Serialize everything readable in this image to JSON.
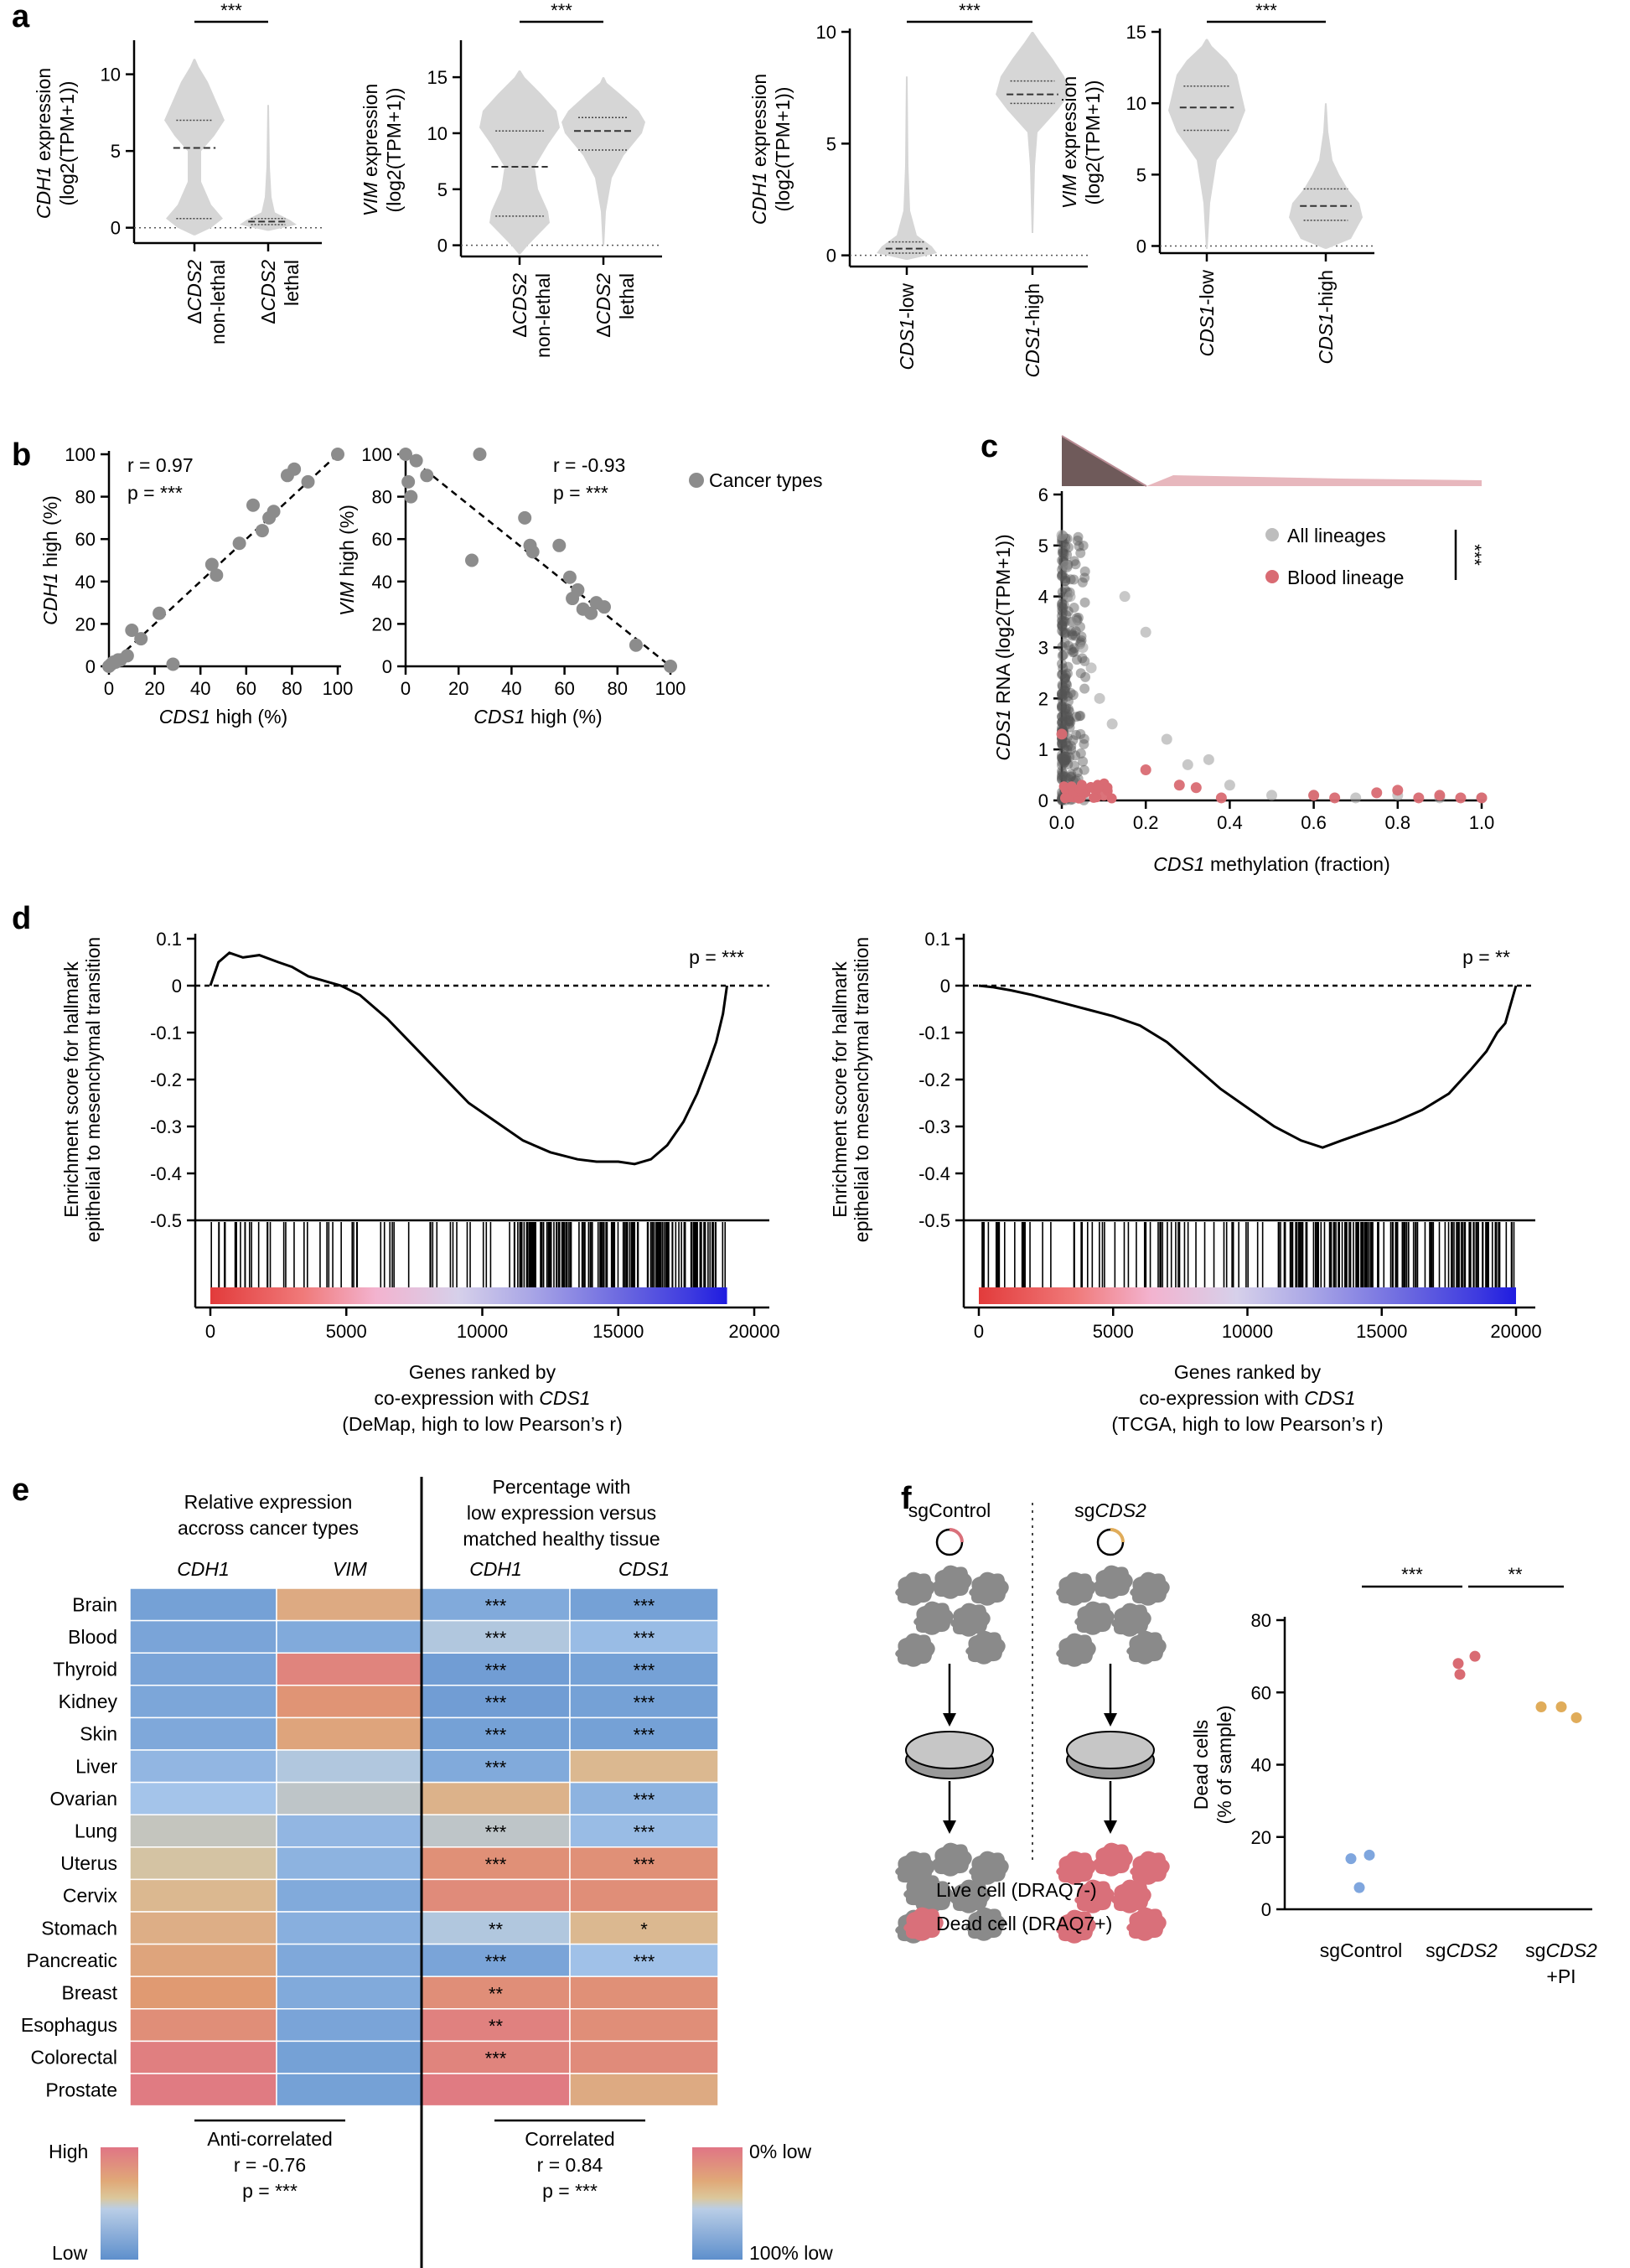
{
  "panel_labels": {
    "a": "a",
    "b": "b",
    "c": "c",
    "d": "d",
    "e": "e",
    "f": "f"
  },
  "sig": {
    "three": "***",
    "two": "**",
    "one": "*"
  },
  "common": {
    "log_unit": "(log2(TPM+1))",
    "expression": " expression",
    "delta": "Δ",
    "non_lethal": "non-lethal",
    "lethal": "lethal",
    "low": "-low",
    "high": "-high",
    "high_pct": " high (%)"
  },
  "genes": {
    "cdh1": "CDH1",
    "vim": "VIM",
    "cds1": "CDS1",
    "cds2": "CDS2"
  },
  "chart_data": [
    {
      "id": "a1",
      "type": "violin",
      "panel": "a",
      "ylabel_gene": "CDH1",
      "ylabel": "CDH1 expression (log2(TPM+1))",
      "ylim": [
        -1,
        12
      ],
      "yticks": [
        0,
        5,
        10
      ],
      "categories": [
        "ΔCDS2 non-lethal",
        "ΔCDS2 lethal"
      ],
      "medians": [
        5.2,
        0.4
      ],
      "quartiles": [
        [
          0.6,
          7.0
        ],
        [
          0.2,
          0.6
        ]
      ],
      "significance": "***"
    },
    {
      "id": "a2",
      "type": "violin",
      "panel": "a",
      "ylabel_gene": "VIM",
      "ylabel": "VIM expression (log2(TPM+1))",
      "ylim": [
        -1,
        18
      ],
      "yticks": [
        0,
        5,
        10,
        15
      ],
      "categories": [
        "ΔCDS2 non-lethal",
        "ΔCDS2 lethal"
      ],
      "medians": [
        7.0,
        10.2
      ],
      "quartiles": [
        [
          2.6,
          10.2
        ],
        [
          8.5,
          11.4
        ]
      ],
      "significance": "***"
    },
    {
      "id": "a3",
      "type": "violin",
      "panel": "a",
      "ylabel_gene": "CDH1",
      "ylabel": "CDH1 expression (log2(TPM+1))",
      "ylim": [
        -0.5,
        10
      ],
      "yticks": [
        0,
        5,
        10
      ],
      "categories": [
        "CDS1-low",
        "CDS1-high"
      ],
      "medians": [
        0.3,
        7.2
      ],
      "quartiles": [
        [
          0.1,
          0.6
        ],
        [
          6.8,
          7.8
        ]
      ],
      "significance": "***"
    },
    {
      "id": "a4",
      "type": "violin",
      "panel": "a",
      "ylabel_gene": "VIM",
      "ylabel": "VIM expression (log2(TPM+1))",
      "ylim": [
        -0.5,
        15
      ],
      "yticks": [
        0,
        5,
        10,
        15
      ],
      "categories": [
        "CDS1-low",
        "CDS1-high"
      ],
      "medians": [
        9.7,
        2.8
      ],
      "quartiles": [
        [
          8.1,
          11.2
        ],
        [
          1.8,
          4.0
        ]
      ],
      "significance": "***"
    },
    {
      "id": "b1",
      "type": "scatter",
      "panel": "b",
      "xlabel": "CDS1 high (%)",
      "ylabel": "CDH1 high (%)",
      "xlim": [
        0,
        100
      ],
      "ylim": [
        0,
        100
      ],
      "xticks": [
        0,
        20,
        40,
        60,
        80,
        100
      ],
      "yticks": [
        0,
        20,
        40,
        60,
        80,
        100
      ],
      "annotation_r": "r = 0.97",
      "annotation_p": "p = ***",
      "x": [
        0,
        1,
        2,
        3,
        4,
        5,
        8,
        10,
        14,
        22,
        28,
        45,
        47,
        57,
        63,
        67,
        70,
        72,
        78,
        81,
        87,
        100
      ],
      "y": [
        0,
        1,
        2,
        2,
        3,
        3,
        5,
        17,
        13,
        25,
        1,
        48,
        43,
        58,
        76,
        64,
        70,
        73,
        90,
        93,
        87,
        100
      ]
    },
    {
      "id": "b2",
      "type": "scatter",
      "panel": "b",
      "xlabel": "CDS1 high (%)",
      "ylabel": "VIM high (%)",
      "xlim": [
        0,
        100
      ],
      "ylim": [
        0,
        100
      ],
      "xticks": [
        0,
        20,
        40,
        60,
        80,
        100
      ],
      "yticks": [
        0,
        20,
        40,
        60,
        80,
        100
      ],
      "annotation_r": "r = -0.93",
      "annotation_p": "p = ***",
      "legend": "Cancer types",
      "x": [
        0,
        1,
        2,
        4,
        8,
        25,
        28,
        45,
        47,
        48,
        58,
        62,
        63,
        65,
        67,
        70,
        72,
        75,
        87,
        100
      ],
      "y": [
        100,
        87,
        80,
        97,
        90,
        50,
        100,
        70,
        57,
        54,
        57,
        42,
        32,
        36,
        27,
        25,
        30,
        28,
        10,
        0
      ]
    },
    {
      "id": "c",
      "type": "scatter",
      "panel": "c",
      "xlabel": "CDS1 methylation (fraction)",
      "ylabel": "CDS1 RNA (log2(TPM+1))",
      "xlim": [
        0,
        1
      ],
      "ylim": [
        0,
        6
      ],
      "xticks": [
        0.0,
        0.2,
        0.4,
        0.6,
        0.8,
        1.0
      ],
      "yticks": [
        0,
        1,
        2,
        3,
        4,
        5,
        6
      ],
      "xtick_labels": [
        "0.0",
        "0.2",
        "0.4",
        "0.6",
        "0.8",
        "1.0"
      ],
      "series": [
        {
          "name": "All lineages",
          "color": "#9a9a9a",
          "x": [
            0.0,
            0.01,
            0.02,
            0.03,
            0.05,
            0.07,
            0.09,
            0.12,
            0.15,
            0.2,
            0.25,
            0.3,
            0.35,
            0.4,
            0.5,
            0.6,
            0.7,
            0.8,
            0.9,
            1.0
          ],
          "y": [
            5.2,
            4.6,
            4.0,
            3.5,
            3.0,
            2.6,
            2.0,
            1.5,
            4.0,
            3.3,
            1.2,
            0.7,
            0.8,
            0.3,
            0.1,
            0.1,
            0.05,
            0.1,
            0.05,
            0.05
          ]
        },
        {
          "name": "Blood lineage",
          "color": "#d96b73",
          "x": [
            0.0,
            0.02,
            0.05,
            0.1,
            0.2,
            0.28,
            0.32,
            0.38,
            0.6,
            0.65,
            0.75,
            0.8,
            0.85,
            0.9,
            0.95,
            1.0
          ],
          "y": [
            1.3,
            0.1,
            0.2,
            0.1,
            0.6,
            0.3,
            0.25,
            0.05,
            0.1,
            0.05,
            0.15,
            0.2,
            0.05,
            0.1,
            0.05,
            0.05
          ]
        }
      ],
      "significance": "***"
    },
    {
      "id": "d1",
      "type": "line",
      "panel": "d",
      "ylabel": "Enrichment score for hallmark epithelial to mesenchymal transition",
      "xlabel": "Genes ranked by co-expression with CDS1 (DeMap, high to low Pearson’s r)",
      "xlim": [
        0,
        20000
      ],
      "ylim": [
        -0.5,
        0.1
      ],
      "xticks": [
        0,
        5000,
        10000,
        15000,
        20000
      ],
      "yticks": [
        0.1,
        0,
        -0.1,
        -0.2,
        -0.3,
        -0.4,
        -0.5
      ],
      "annotation": "p = ***",
      "n_genes": 19000,
      "x": [
        0,
        300,
        700,
        1200,
        1800,
        2500,
        3000,
        3600,
        4200,
        4800,
        5500,
        6500,
        7500,
        8500,
        9500,
        10500,
        11500,
        12500,
        13500,
        14200,
        15000,
        15600,
        16200,
        16800,
        17400,
        17900,
        18300,
        18600,
        18850,
        19000
      ],
      "y": [
        0,
        0.05,
        0.07,
        0.06,
        0.065,
        0.05,
        0.04,
        0.02,
        0.01,
        0.0,
        -0.02,
        -0.07,
        -0.13,
        -0.19,
        -0.25,
        -0.29,
        -0.33,
        -0.355,
        -0.37,
        -0.375,
        -0.375,
        -0.38,
        -0.37,
        -0.34,
        -0.29,
        -0.23,
        -0.17,
        -0.12,
        -0.06,
        0
      ]
    },
    {
      "id": "d2",
      "type": "line",
      "panel": "d",
      "ylabel": "Enrichment score for hallmark epithelial to mesenchymal transition",
      "xlabel": "Genes ranked by co-expression with CDS1 (TCGA, high to low Pearson’s r)",
      "xlim": [
        0,
        20000
      ],
      "ylim": [
        -0.5,
        0.1
      ],
      "xticks": [
        0,
        5000,
        10000,
        15000,
        20000
      ],
      "yticks": [
        0.1,
        0,
        -0.1,
        -0.2,
        -0.3,
        -0.4,
        -0.5
      ],
      "annotation": "p = **",
      "n_genes": 20000,
      "x": [
        0,
        500,
        1200,
        2000,
        3000,
        4000,
        5000,
        6000,
        7000,
        8000,
        9000,
        10000,
        11000,
        12000,
        12800,
        13500,
        14500,
        15500,
        16500,
        17500,
        18300,
        18900,
        19300,
        19600,
        19800,
        20000
      ],
      "y": [
        0,
        -0.003,
        -0.01,
        -0.02,
        -0.035,
        -0.05,
        -0.065,
        -0.085,
        -0.12,
        -0.17,
        -0.22,
        -0.26,
        -0.3,
        -0.33,
        -0.345,
        -0.33,
        -0.31,
        -0.29,
        -0.265,
        -0.23,
        -0.18,
        -0.14,
        -0.1,
        -0.08,
        -0.04,
        0
      ]
    },
    {
      "id": "e",
      "type": "heatmap",
      "panel": "e",
      "left_title": [
        "Relative expression",
        "accross cancer types"
      ],
      "right_title": [
        "Percentage with",
        "low expression versus",
        "matched healthy tissue"
      ],
      "columns": [
        "CDH1",
        "VIM",
        "CDH1",
        "CDS1"
      ],
      "rows": [
        "Brain",
        "Blood",
        "Thyroid",
        "Kidney",
        "Skin",
        "Liver",
        "Ovarian",
        "Lung",
        "Uterus",
        "Cervix",
        "Stomach",
        "Pancreatic",
        "Breast",
        "Esophagus",
        "Colorectal",
        "Prostate"
      ],
      "values": [
        [
          0.1,
          0.62,
          0.15,
          0.1
        ],
        [
          0.12,
          0.15,
          0.35,
          0.25
        ],
        [
          0.12,
          0.88,
          0.08,
          0.1
        ],
        [
          0.13,
          0.75,
          0.08,
          0.1
        ],
        [
          0.14,
          0.65,
          0.1,
          0.1
        ],
        [
          0.22,
          0.35,
          0.15,
          0.55
        ],
        [
          0.3,
          0.4,
          0.58,
          0.2
        ],
        [
          0.42,
          0.22,
          0.4,
          0.25
        ],
        [
          0.48,
          0.2,
          0.78,
          0.78
        ],
        [
          0.55,
          0.15,
          0.82,
          0.8
        ],
        [
          0.6,
          0.18,
          0.35,
          0.55
        ],
        [
          0.65,
          0.14,
          0.12,
          0.28
        ],
        [
          0.7,
          0.15,
          0.8,
          0.78
        ],
        [
          0.8,
          0.12,
          0.9,
          0.8
        ],
        [
          0.92,
          0.1,
          0.88,
          0.82
        ],
        [
          0.95,
          0.1,
          0.95,
          0.62
        ]
      ],
      "stars": [
        [
          "",
          "",
          "***",
          "***"
        ],
        [
          "",
          "",
          "***",
          "***"
        ],
        [
          "",
          "",
          "***",
          "***"
        ],
        [
          "",
          "",
          "***",
          "***"
        ],
        [
          "",
          "",
          "***",
          "***"
        ],
        [
          "",
          "",
          "***",
          ""
        ],
        [
          "",
          "",
          "",
          "***"
        ],
        [
          "",
          "",
          "***",
          "***"
        ],
        [
          "",
          "",
          "***",
          "***"
        ],
        [
          "",
          "",
          "",
          ""
        ],
        [
          "",
          "",
          "**",
          "*"
        ],
        [
          "",
          "",
          "***",
          "***"
        ],
        [
          "",
          "",
          "**",
          ""
        ],
        [
          "",
          "",
          "**",
          ""
        ],
        [
          "",
          "",
          "***",
          ""
        ],
        [
          "",
          "",
          "",
          ""
        ]
      ],
      "left_summary": {
        "label": "Anti-correlated",
        "r": "r =  -0.76",
        "p": "p = ***"
      },
      "right_summary": {
        "label": "Correlated",
        "r": "r = 0.84",
        "p": "p = ***"
      },
      "left_scale": {
        "top": "High",
        "bottom": "Low"
      },
      "right_scale": {
        "top": "0% low",
        "bottom": "100% low"
      }
    },
    {
      "id": "f",
      "type": "scatter",
      "panel": "f",
      "ylabel": "Dead cells (% of sample)",
      "ylim": [
        0,
        80
      ],
      "yticks": [
        0,
        20,
        40,
        60,
        80
      ],
      "categories": [
        "sgControl",
        "sgCDS2",
        "sgCDS2 +PI"
      ],
      "series": [
        {
          "name": "sgControl",
          "color": "#7fa6de",
          "values": [
            14,
            15,
            6
          ]
        },
        {
          "name": "sgCDS2",
          "color": "#d96b73",
          "values": [
            68,
            70,
            65
          ]
        },
        {
          "name": "sgCDS2 +PI",
          "color": "#e0ac5a",
          "values": [
            56,
            56,
            53
          ]
        }
      ],
      "significance": [
        "***",
        "**"
      ]
    }
  ],
  "panel_f": {
    "sgcontrol_label": "sgControl",
    "sg_prefix": "sg",
    "plus_pi": "+PI",
    "legend_live": "Live cell (DRAQ7-)",
    "legend_dead": "Dead cell (DRAQ7+)",
    "colors": {
      "live": "#8a8a8a",
      "dead": "#d9707a",
      "control_ring": "#d9707a",
      "cds2_ring": "#e0ac5a"
    }
  },
  "colors": {
    "violin": "#d6d6d6",
    "point_grey": "#8c8c8c",
    "heat_blue": "#5e8fcc",
    "heat_lightblue": "#a9c8ec",
    "heat_tan": "#d9c29a",
    "heat_orange": "#e09a72",
    "heat_red": "#e07585"
  }
}
